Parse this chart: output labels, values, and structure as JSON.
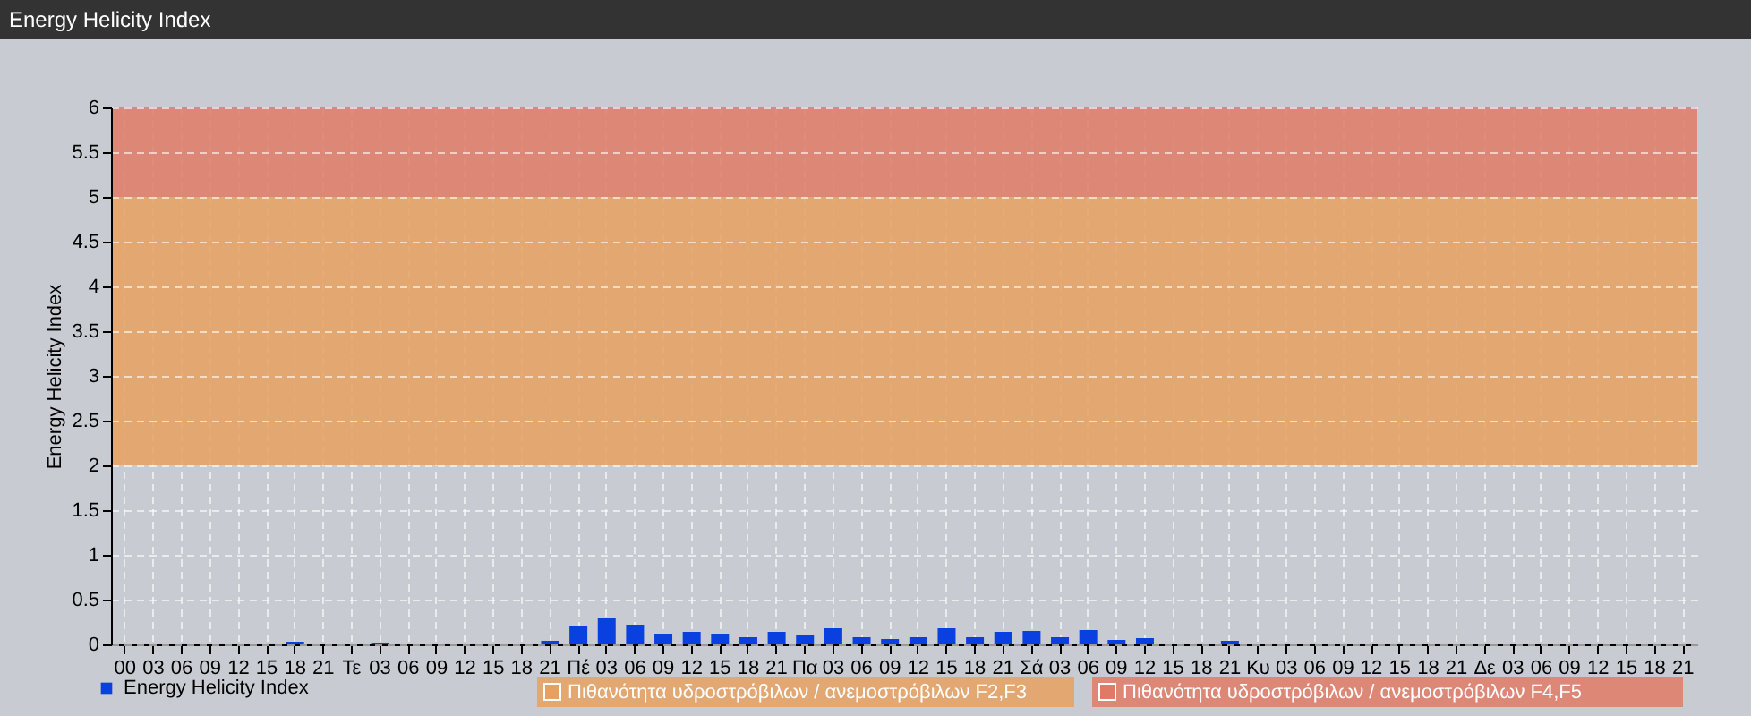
{
  "chart_data": {
    "type": "bar",
    "title": "Energy Helicity Index",
    "ylabel": "Energy Helicity Index",
    "categories": [
      "00",
      "03",
      "06",
      "09",
      "12",
      "15",
      "18",
      "21",
      "Τε",
      "03",
      "06",
      "09",
      "12",
      "15",
      "18",
      "21",
      "Πέ",
      "03",
      "06",
      "09",
      "12",
      "15",
      "18",
      "21",
      "Πα",
      "03",
      "06",
      "09",
      "12",
      "15",
      "18",
      "21",
      "Σά",
      "03",
      "06",
      "09",
      "12",
      "15",
      "18",
      "21",
      "Κυ",
      "03",
      "06",
      "09",
      "12",
      "15",
      "18",
      "21",
      "Δε",
      "03",
      "06",
      "09",
      "12",
      "15",
      "18",
      "21"
    ],
    "series": [
      {
        "name": "Energy Helicity Index",
        "color": "#0a40e0",
        "values": [
          0.01,
          0.01,
          0.01,
          0.01,
          0.01,
          0.01,
          0.03,
          0.01,
          0.01,
          0.02,
          0.01,
          0.01,
          0.01,
          0.01,
          0.01,
          0.04,
          0.2,
          0.3,
          0.22,
          0.12,
          0.14,
          0.12,
          0.08,
          0.14,
          0.1,
          0.18,
          0.08,
          0.06,
          0.08,
          0.18,
          0.08,
          0.14,
          0.15,
          0.08,
          0.16,
          0.05,
          0.07,
          0.01,
          0.01,
          0.04,
          0.01,
          0.01,
          0.01,
          0.01,
          0.01,
          0.01,
          0.01,
          0.01,
          0.01,
          0.01,
          0.01,
          0.01,
          0.01,
          0.01,
          0.01,
          0.01
        ]
      }
    ],
    "ylim": [
      0,
      6
    ],
    "yticks": [
      0,
      0.5,
      1,
      1.5,
      2,
      2.5,
      3,
      3.5,
      4,
      4.5,
      5,
      5.5,
      6
    ],
    "grid": true,
    "legend": "bottom left",
    "bands": [
      {
        "axis": "y",
        "from": 2,
        "to": 5,
        "label": "Πιθανότητα υδροστρόβιλων / ανεμοστρόβιλων F2,F3",
        "color": "#e8a060"
      },
      {
        "axis": "y",
        "from": 5,
        "to": 6,
        "label": "Πιθανότητα υδροστρόβιλων / ανεμοστρόβιλων F4,F5",
        "color": "#e07a66"
      }
    ]
  }
}
